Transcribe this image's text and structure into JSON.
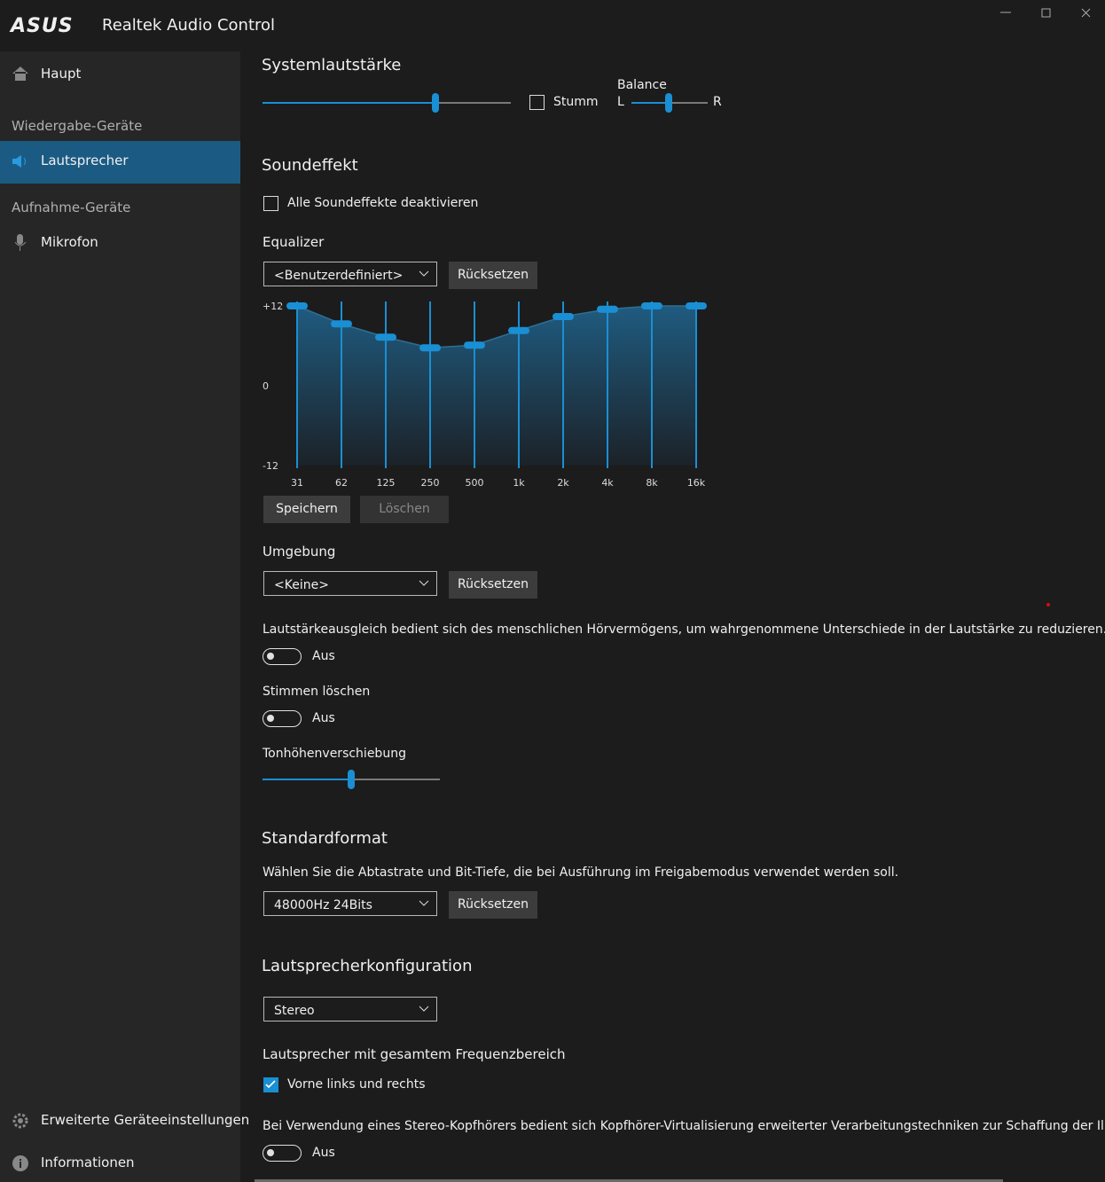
{
  "window": {
    "logo": "ASUS",
    "title": "Realtek Audio Control"
  },
  "sidebar": {
    "main": "Haupt",
    "playback_header": "Wiedergabe-Geräte",
    "speaker": "Lautsprecher",
    "recording_header": "Aufnahme-Geräte",
    "microphone": "Mikrofon",
    "advanced": "Erweiterte Geräteeinstellungen",
    "info": "Informationen"
  },
  "system_volume": {
    "title": "Systemlautstärke",
    "mute": "Stumm",
    "balance": "Balance",
    "left": "L",
    "right": "R"
  },
  "sound_effect": {
    "title": "Soundeffekt",
    "disable_all": "Alle Soundeffekte deaktivieren"
  },
  "equalizer": {
    "label": "Equalizer",
    "preset": "<Benutzerdefiniert>",
    "reset": "Rücksetzen",
    "bands": [
      "31",
      "62",
      "125",
      "250",
      "500",
      "1k",
      "2k",
      "4k",
      "8k",
      "16k"
    ],
    "gains": [
      12,
      9.3,
      7.3,
      5.7,
      6.1,
      8.3,
      10.4,
      11.5,
      12,
      12
    ],
    "ylim": [
      -12,
      12
    ],
    "yticks": [
      {
        "value": 12,
        "label": "+12"
      },
      0,
      -12
    ],
    "save": "Speichern",
    "delete": "Löschen"
  },
  "environment": {
    "label": "Umgebung",
    "preset": "<Keine>",
    "reset": "Rücksetzen"
  },
  "loudness": {
    "description": "Lautstärkeausgleich bedient sich des menschlichen Hörvermögens, um wahrgenommene Unterschiede in der Lautstärke zu reduzieren.",
    "state": "Aus"
  },
  "voice_cancel": {
    "label": "Stimmen löschen",
    "state": "Aus"
  },
  "pitch": {
    "label": "Tonhöhenverschiebung"
  },
  "default_format": {
    "title": "Standardformat",
    "description": "Wählen Sie die Abtastrate und Bit-Tiefe, die bei Ausführung im Freigabemodus verwendet werden soll.",
    "value": "48000Hz 24Bits",
    "reset": "Rücksetzen"
  },
  "speaker_config": {
    "title": "Lautsprecherkonfiguration",
    "value": "Stereo",
    "fullrange_label": "Lautsprecher mit gesamtem Frequenzbereich",
    "fullrange_option": "Vorne links und rechts",
    "virtualization": "Bei Verwendung eines Stereo-Kopfhörers bedient sich Kopfhörer-Virtualisierung erweiterter Verarbeitungstechniken zur Schaffung der Illusion ei",
    "virtualization_state": "Aus"
  }
}
